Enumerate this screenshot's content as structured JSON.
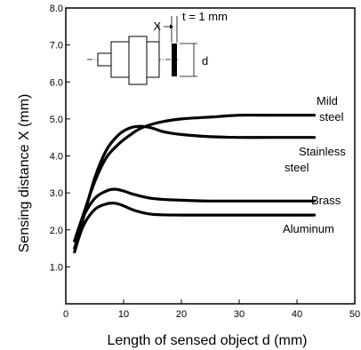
{
  "chart_data": {
    "type": "line",
    "title": "",
    "xlabel": "Length of sensed object d (mm)",
    "ylabel": "Sensing distance X (mm)",
    "xlim": [
      0,
      50
    ],
    "ylim": [
      0,
      8.0
    ],
    "x_ticks": [
      {
        "value": 0,
        "label": "0"
      },
      {
        "value": 10,
        "label": "10"
      },
      {
        "value": 20,
        "label": "20"
      },
      {
        "value": 30,
        "label": "30"
      },
      {
        "value": 40,
        "label": "40"
      },
      {
        "value": 50,
        "label": "50"
      }
    ],
    "y_ticks": [
      {
        "value": 1.0,
        "label": "1.0"
      },
      {
        "value": 2.0,
        "label": "2.0"
      },
      {
        "value": 3.0,
        "label": "3.0"
      },
      {
        "value": 4.0,
        "label": "4.0"
      },
      {
        "value": 5.0,
        "label": "5.0"
      },
      {
        "value": 6.0,
        "label": "6.0"
      },
      {
        "value": 7.0,
        "label": "7.0"
      },
      {
        "value": 8.0,
        "label": "8.0"
      }
    ],
    "grid": false,
    "series": [
      {
        "name": "Mild steel",
        "label_lines": [
          "Mild",
          "steel"
        ],
        "x": [
          1.5,
          3,
          5,
          7,
          9,
          11,
          13,
          16,
          20,
          25,
          30,
          35,
          40,
          43
        ],
        "y": [
          1.7,
          2.4,
          3.3,
          3.95,
          4.3,
          4.55,
          4.75,
          4.9,
          5.0,
          5.05,
          5.1,
          5.1,
          5.1,
          5.1
        ]
      },
      {
        "name": "Stainless steel",
        "label_lines": [
          "Stainless",
          "steel"
        ],
        "x": [
          1.5,
          3,
          5,
          7,
          9,
          11,
          13,
          15,
          17,
          20,
          25,
          30,
          35,
          40,
          43
        ],
        "y": [
          1.5,
          2.3,
          3.4,
          4.15,
          4.55,
          4.75,
          4.8,
          4.75,
          4.65,
          4.58,
          4.52,
          4.5,
          4.5,
          4.5,
          4.5
        ]
      },
      {
        "name": "Brass",
        "label_lines": [
          "Brass"
        ],
        "x": [
          1.5,
          3,
          5,
          7,
          8.5,
          10,
          12,
          15,
          20,
          25,
          30,
          35,
          40,
          43
        ],
        "y": [
          1.7,
          2.35,
          2.85,
          3.05,
          3.1,
          3.05,
          2.95,
          2.85,
          2.8,
          2.78,
          2.78,
          2.78,
          2.78,
          2.78
        ]
      },
      {
        "name": "Aluminum",
        "label_lines": [
          "Aluminum"
        ],
        "x": [
          1.5,
          3,
          5,
          7,
          8.5,
          10,
          12,
          15,
          20,
          25,
          30,
          35,
          40,
          43
        ],
        "y": [
          1.4,
          2.1,
          2.55,
          2.7,
          2.72,
          2.65,
          2.52,
          2.42,
          2.4,
          2.4,
          2.4,
          2.4,
          2.4,
          2.4
        ]
      }
    ],
    "inset": {
      "x_label": "X",
      "thickness_label": "t = 1 mm",
      "d_label": "d"
    }
  }
}
